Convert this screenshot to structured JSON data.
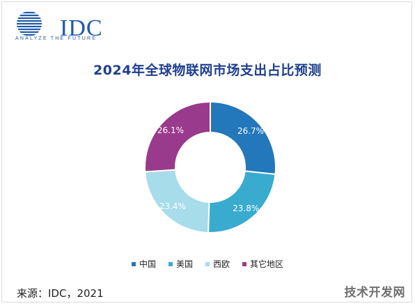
{
  "brand": {
    "logo_text": "IDC",
    "tagline": "ANALYZE THE FUTURE",
    "logo_color": "#1f5aa8"
  },
  "chart_data": {
    "type": "pie",
    "donut": true,
    "title": "2024年全球物联网市场支出占比预测",
    "categories": [
      "中国",
      "美国",
      "西欧",
      "其它地区"
    ],
    "values": [
      26.7,
      23.8,
      23.4,
      26.1
    ],
    "labels": [
      "26.7%",
      "23.8%",
      "23.4%",
      "26.1%"
    ],
    "colors": [
      "#2377bb",
      "#39abcf",
      "#a7dcea",
      "#9a3a8c"
    ],
    "legend_position": "bottom"
  },
  "source": "来源：IDC，2021",
  "watermark": "技术开发网"
}
